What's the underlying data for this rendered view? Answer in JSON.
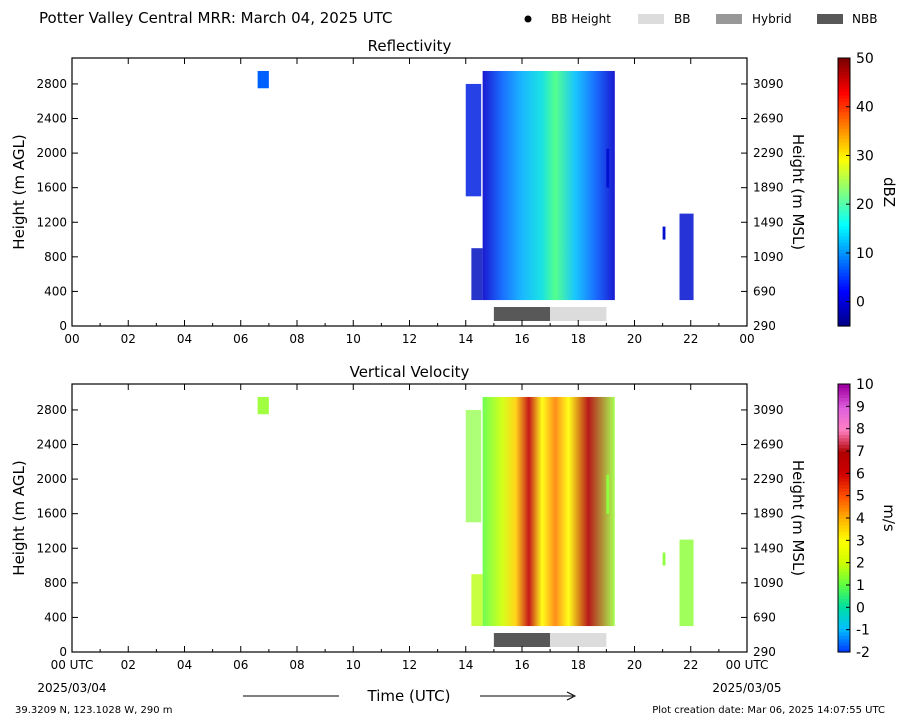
{
  "header": {
    "title": "Potter Valley Central MRR:  March 04, 2025 UTC",
    "legend": [
      {
        "label": "BB Height",
        "kind": "dot",
        "color": "#000000"
      },
      {
        "label": "BB",
        "kind": "bar",
        "color": "#dcdcdc"
      },
      {
        "label": "Hybrid",
        "kind": "bar",
        "color": "#989898"
      },
      {
        "label": "NBB",
        "kind": "bar",
        "color": "#585858"
      }
    ]
  },
  "footer": {
    "location": "39.3209 N, 123.1028 W, 290 m",
    "creation_date": "Plot creation date: Mar 06, 2025 14:07:55 UTC",
    "x_axis_label": "Time (UTC)",
    "start_date": "2025/03/04",
    "end_date": "2025/03/05"
  },
  "chart_data": [
    {
      "type": "heatmap",
      "title": "Reflectivity",
      "ylabel": "Height (m AGL)",
      "ylabel_right": "Height (m MSL)",
      "colorbar_label": "dBZ",
      "x_ticks": [
        "00",
        "02",
        "04",
        "06",
        "08",
        "10",
        "12",
        "14",
        "16",
        "18",
        "20",
        "22",
        "00"
      ],
      "xlim_hours": [
        0,
        24
      ],
      "y_ticks_left": [
        0,
        400,
        800,
        1200,
        1600,
        2000,
        2400,
        2800
      ],
      "y_ticks_right": [
        290,
        690,
        1090,
        1490,
        1890,
        2290,
        2690,
        3090
      ],
      "ylim": [
        0,
        3100
      ],
      "colorbar_ticks": [
        0,
        10,
        20,
        30,
        40,
        50
      ],
      "colorbar_range": [
        -5,
        50
      ],
      "colorbar_colors": [
        "#00008b",
        "#0000ff",
        "#0080ff",
        "#00ffff",
        "#80ff80",
        "#ffff00",
        "#ff8000",
        "#ff0000",
        "#800000"
      ],
      "bright_band": [
        {
          "start": 15.0,
          "end": 17.0,
          "category": "NBB"
        },
        {
          "start": 17.0,
          "end": 19.0,
          "category": "BB"
        }
      ]
    },
    {
      "type": "heatmap",
      "title": "Vertical Velocity",
      "ylabel": "Height (m AGL)",
      "ylabel_right": "Height (m MSL)",
      "colorbar_label": "m/s",
      "x_ticks": [
        "00 UTC",
        "02",
        "04",
        "06",
        "08",
        "10",
        "12",
        "14",
        "16",
        "18",
        "20",
        "22",
        "00 UTC"
      ],
      "xlim_hours": [
        0,
        24
      ],
      "y_ticks_left": [
        0,
        400,
        800,
        1200,
        1600,
        2000,
        2400,
        2800
      ],
      "y_ticks_right": [
        290,
        690,
        1090,
        1490,
        1890,
        2290,
        2690,
        3090
      ],
      "ylim": [
        0,
        3100
      ],
      "colorbar_ticks": [
        -2,
        -1,
        0,
        1,
        2,
        3,
        4,
        5,
        6,
        7,
        8,
        9,
        10
      ],
      "colorbar_range": [
        -2,
        10
      ],
      "colorbar_colors": [
        "#0040ff",
        "#00c0ff",
        "#00e0a0",
        "#60ff40",
        "#d0ff00",
        "#ffff00",
        "#ffb000",
        "#ff5000",
        "#d00000",
        "#b00000",
        "#ff80c0",
        "#e060e0",
        "#a000a0"
      ],
      "bright_band": [
        {
          "start": 15.0,
          "end": 17.0,
          "category": "NBB"
        },
        {
          "start": 17.0,
          "end": 19.0,
          "category": "BB"
        }
      ]
    }
  ]
}
